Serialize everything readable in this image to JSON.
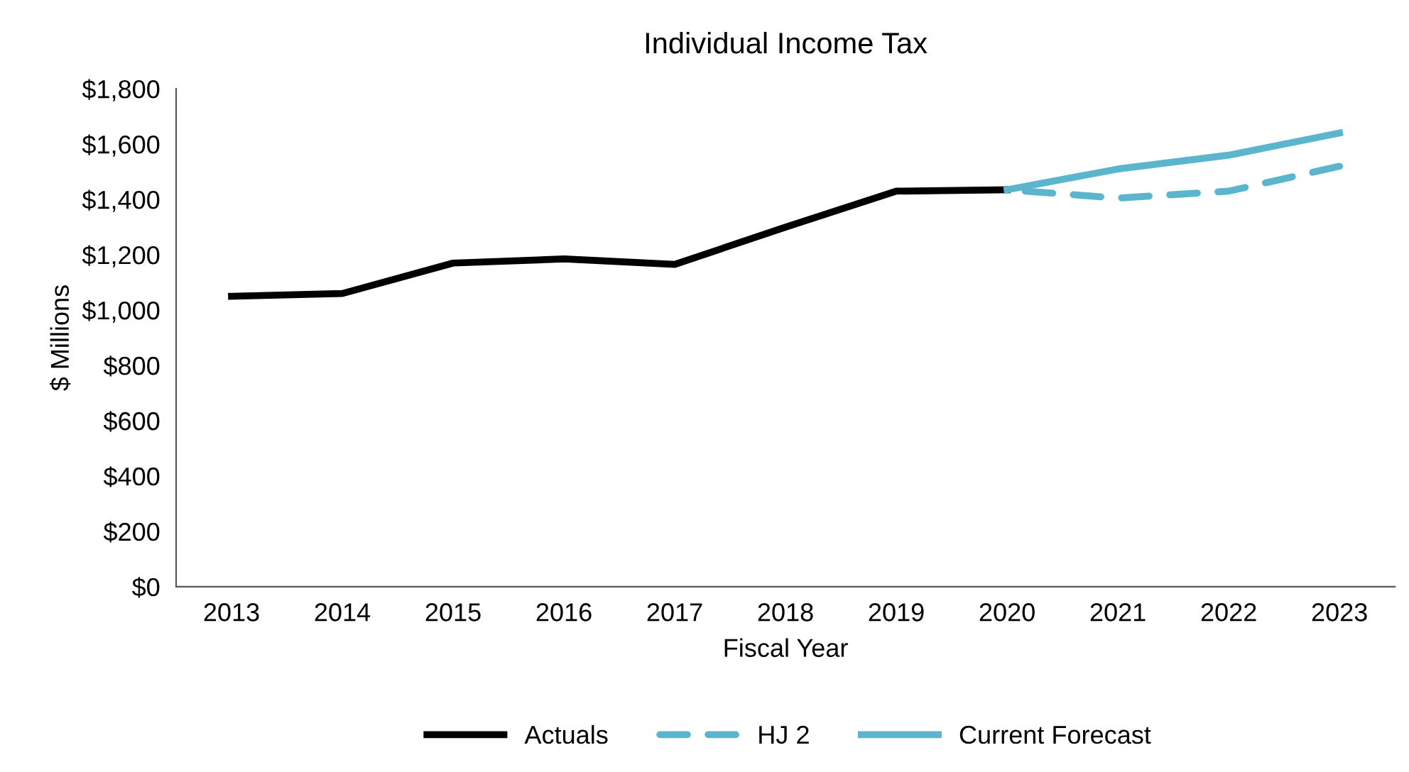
{
  "chart_data": {
    "type": "line",
    "title": "Individual Income Tax",
    "xlabel": "Fiscal Year",
    "ylabel": "$ Millions",
    "categories": [
      "2013",
      "2014",
      "2015",
      "2016",
      "2017",
      "2018",
      "2019",
      "2020",
      "2021",
      "2022",
      "2023"
    ],
    "series": [
      {
        "name": "Actuals",
        "color": "#000000",
        "line_style": "solid",
        "values": [
          1050,
          1060,
          1170,
          1185,
          1165,
          1300,
          1430,
          1435,
          null,
          null,
          null
        ]
      },
      {
        "name": "HJ 2",
        "color": "#5bb5cc",
        "line_style": "dashed",
        "values": [
          null,
          null,
          null,
          null,
          null,
          null,
          null,
          1435,
          1405,
          1430,
          1520
        ]
      },
      {
        "name": "Current Forecast",
        "color": "#5bb5cc",
        "line_style": "solid",
        "values": [
          null,
          null,
          null,
          null,
          null,
          null,
          null,
          1435,
          1510,
          1560,
          1640
        ]
      }
    ],
    "ylim": [
      0,
      1800
    ],
    "yticks": [
      {
        "value": 0,
        "label": "$0"
      },
      {
        "value": 200,
        "label": "$200"
      },
      {
        "value": 400,
        "label": "$400"
      },
      {
        "value": 600,
        "label": "$600"
      },
      {
        "value": 800,
        "label": "$800"
      },
      {
        "value": 1000,
        "label": "$1,000"
      },
      {
        "value": 1200,
        "label": "$1,200"
      },
      {
        "value": 1400,
        "label": "$1,400"
      },
      {
        "value": 1600,
        "label": "$1,600"
      },
      {
        "value": 1800,
        "label": "$1,800"
      }
    ],
    "grid": false,
    "legend": "bottom",
    "marker": "none"
  }
}
